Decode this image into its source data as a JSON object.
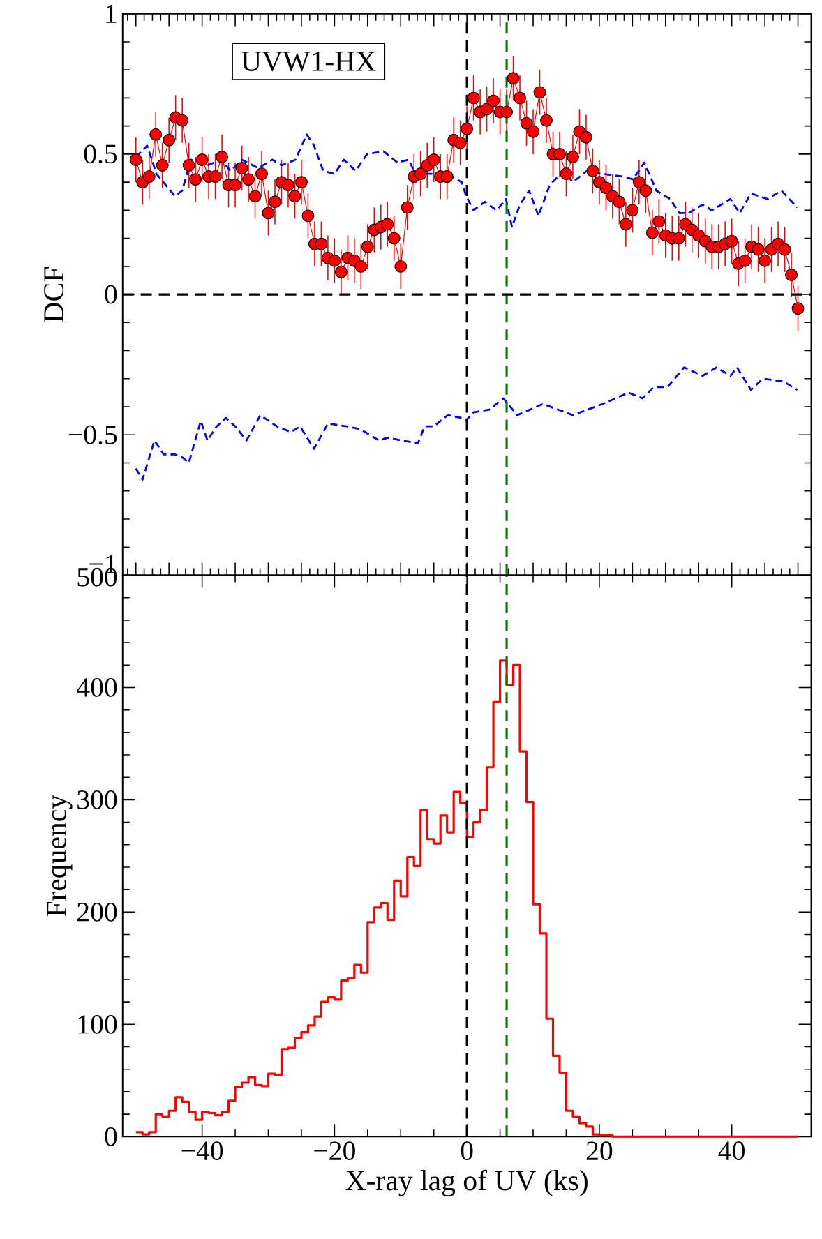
{
  "chart_data": [
    {
      "type": "line",
      "ylabel": "DCF",
      "annotations": [
        "UVW1-HX"
      ],
      "xlim": [
        -52,
        52
      ],
      "ylim": [
        -1,
        1
      ],
      "yticks": [
        {
          "value": -1,
          "label": "−1"
        },
        {
          "value": -0.5,
          "label": "−0.5"
        },
        0,
        0.5,
        1
      ],
      "tick_labels": "y",
      "series": [
        {
          "type": "line",
          "color": "#ff0000",
          "marker": "circle",
          "x": [
            -50,
            -49,
            -48,
            -47,
            -46,
            -45,
            -44,
            -43,
            -42,
            -41,
            -40,
            -39,
            -38,
            -37,
            -36,
            -35,
            -34,
            -33,
            -32,
            -31,
            -30,
            -29,
            -28,
            -27,
            -26,
            -25,
            -24,
            -23,
            -22,
            -21,
            -20,
            -19,
            -18,
            -17,
            -16,
            -15,
            -14,
            -13,
            -12,
            -11,
            -10,
            -9,
            -8,
            -7,
            -6,
            -5,
            -4,
            -3,
            -2,
            -1,
            0,
            1,
            2,
            3,
            4,
            5,
            6,
            7,
            8,
            9,
            10,
            11,
            12,
            13,
            14,
            15,
            16,
            17,
            18,
            19,
            20,
            21,
            22,
            23,
            24,
            25,
            26,
            27,
            28,
            29,
            30,
            31,
            32,
            33,
            34,
            35,
            36,
            37,
            38,
            39,
            40,
            41,
            42,
            43,
            44,
            45,
            46,
            47,
            48,
            49,
            50
          ],
          "values": [
            0.48,
            0.4,
            0.42,
            0.57,
            0.46,
            0.55,
            0.63,
            0.62,
            0.46,
            0.41,
            0.48,
            0.42,
            0.42,
            0.49,
            0.39,
            0.39,
            0.45,
            0.41,
            0.35,
            0.43,
            0.29,
            0.33,
            0.4,
            0.39,
            0.35,
            0.4,
            0.28,
            0.18,
            0.18,
            0.13,
            0.12,
            0.08,
            0.13,
            0.12,
            0.1,
            0.17,
            0.23,
            0.24,
            0.25,
            0.2,
            0.1,
            0.31,
            0.42,
            0.43,
            0.46,
            0.48,
            0.42,
            0.42,
            0.55,
            0.54,
            0.59,
            0.7,
            0.65,
            0.66,
            0.69,
            0.65,
            0.65,
            0.77,
            0.7,
            0.61,
            0.58,
            0.72,
            0.62,
            0.5,
            0.5,
            0.43,
            0.49,
            0.58,
            0.56,
            0.44,
            0.4,
            0.38,
            0.35,
            0.33,
            0.25,
            0.3,
            0.4,
            0.37,
            0.22,
            0.26,
            0.21,
            0.2,
            0.2,
            0.25,
            0.23,
            0.21,
            0.19,
            0.17,
            0.17,
            0.18,
            0.19,
            0.11,
            0.12,
            0.17,
            0.16,
            0.12,
            0.16,
            0.18,
            0.16,
            0.07,
            -0.05
          ],
          "errors": [
            0.08,
            0.08,
            0.08,
            0.08,
            0.08,
            0.08,
            0.08,
            0.08,
            0.08,
            0.08,
            0.08,
            0.08,
            0.08,
            0.08,
            0.08,
            0.08,
            0.08,
            0.08,
            0.08,
            0.08,
            0.08,
            0.08,
            0.08,
            0.08,
            0.08,
            0.08,
            0.08,
            0.08,
            0.08,
            0.08,
            0.08,
            0.08,
            0.08,
            0.08,
            0.08,
            0.08,
            0.08,
            0.08,
            0.08,
            0.08,
            0.08,
            0.08,
            0.08,
            0.08,
            0.08,
            0.08,
            0.08,
            0.08,
            0.08,
            0.08,
            0.08,
            0.08,
            0.08,
            0.08,
            0.08,
            0.08,
            0.08,
            0.08,
            0.08,
            0.08,
            0.08,
            0.08,
            0.08,
            0.08,
            0.08,
            0.08,
            0.08,
            0.08,
            0.08,
            0.08,
            0.08,
            0.08,
            0.08,
            0.08,
            0.08,
            0.08,
            0.08,
            0.08,
            0.08,
            0.08,
            0.08,
            0.08,
            0.08,
            0.08,
            0.08,
            0.08,
            0.08,
            0.08,
            0.08,
            0.08,
            0.08,
            0.08,
            0.08,
            0.08,
            0.08,
            0.08,
            0.08,
            0.08,
            0.08,
            0.08,
            0.08
          ]
        },
        {
          "type": "line",
          "color": "#0000ff",
          "line_style": "dashed",
          "x": [
            -50,
            -48.3,
            -46.9,
            -44.1,
            -43,
            -41.7,
            -39.2,
            -37.1,
            -35.7,
            -34,
            -31.5,
            -29.4,
            -28,
            -25.9,
            -24.2,
            -23.1,
            -21.7,
            -20,
            -18.6,
            -16.8,
            -15.1,
            -12.6,
            -10.5,
            -8.8,
            -7.8,
            -5,
            -2.2,
            -0.8,
            -0.1,
            1,
            2.7,
            4.5,
            5.9,
            6.8,
            8,
            9.4,
            10.8,
            12.5,
            14.6,
            16,
            18.1,
            20.2,
            23.7,
            25.1,
            26.8,
            28.6,
            30.7,
            32.1,
            33.5,
            35.6,
            37,
            39.8,
            41.2,
            42.9,
            45.4,
            47.5,
            49.9
          ],
          "values": [
            0.49,
            0.53,
            0.43,
            0.35,
            0.37,
            0.48,
            0.46,
            0.48,
            0.44,
            0.48,
            0.45,
            0.48,
            0.46,
            0.48,
            0.57,
            0.53,
            0.44,
            0.43,
            0.48,
            0.44,
            0.5,
            0.51,
            0.47,
            0.48,
            0.43,
            0.43,
            0.42,
            0.4,
            0.35,
            0.3,
            0.33,
            0.3,
            0.34,
            0.24,
            0.32,
            0.37,
            0.28,
            0.39,
            0.44,
            0.4,
            0.44,
            0.43,
            0.42,
            0.41,
            0.47,
            0.37,
            0.34,
            0.29,
            0.29,
            0.32,
            0.3,
            0.34,
            0.29,
            0.36,
            0.34,
            0.37,
            0.31
          ]
        },
        {
          "type": "line",
          "color": "#0000ff",
          "line_style": "dashed",
          "x": [
            -50,
            -49,
            -47.2,
            -45.8,
            -44.1,
            -43,
            -42,
            -40.2,
            -39.2,
            -37.8,
            -36.4,
            -35,
            -33.3,
            -31.2,
            -28.7,
            -26.6,
            -25.2,
            -23.1,
            -21,
            -18.2,
            -16.1,
            -13.3,
            -11.9,
            -9.9,
            -7.4,
            -6.4,
            -5,
            -2.9,
            -0.8,
            -0.2,
            1,
            3.4,
            5.5,
            7.6,
            11.5,
            16,
            20.5,
            24.4,
            26.5,
            28.2,
            30.3,
            32.8,
            35.6,
            37.7,
            39.8,
            40.8,
            42.9,
            44.7,
            47.8,
            49.9
          ],
          "values": [
            -0.62,
            -0.66,
            -0.52,
            -0.57,
            -0.57,
            -0.58,
            -0.6,
            -0.45,
            -0.52,
            -0.47,
            -0.44,
            -0.47,
            -0.52,
            -0.43,
            -0.47,
            -0.49,
            -0.47,
            -0.55,
            -0.46,
            -0.47,
            -0.48,
            -0.52,
            -0.51,
            -0.52,
            -0.53,
            -0.47,
            -0.47,
            -0.43,
            -0.44,
            -0.45,
            -0.42,
            -0.41,
            -0.37,
            -0.43,
            -0.39,
            -0.43,
            -0.39,
            -0.35,
            -0.37,
            -0.33,
            -0.33,
            -0.26,
            -0.29,
            -0.26,
            -0.29,
            -0.26,
            -0.34,
            -0.3,
            -0.31,
            -0.34
          ]
        }
      ],
      "ref_lines": [
        {
          "axis": "x",
          "value": 0,
          "color": "#000000",
          "line_style": "dashed"
        },
        {
          "axis": "x",
          "value": 6,
          "color": "#008000",
          "line_style": "dashed"
        },
        {
          "axis": "y",
          "value": 0,
          "color": "#000000",
          "line_style": "dashed"
        }
      ]
    },
    {
      "type": "histogram",
      "xlabel": "X-ray lag of UV (ks)",
      "ylabel": "Frequency",
      "color": "#ff0000",
      "xlim": [
        -52,
        52
      ],
      "ylim": [
        0,
        500
      ],
      "xticks": [
        {
          "value": -40,
          "label": "−40"
        },
        {
          "value": -20,
          "label": "−20"
        },
        0,
        20,
        40
      ],
      "yticks": [
        0,
        100,
        200,
        300,
        400,
        500
      ],
      "bins": [
        -50,
        -49,
        -48,
        -47,
        -46,
        -45,
        -44,
        -43,
        -42,
        -41,
        -40,
        -39,
        -38,
        -37,
        -36,
        -35,
        -34,
        -33,
        -32,
        -31,
        -30,
        -29,
        -28,
        -27,
        -26,
        -25,
        -24,
        -23,
        -22,
        -21,
        -20,
        -19,
        -18,
        -17,
        -16,
        -15,
        -14,
        -13,
        -12,
        -11,
        -10,
        -9,
        -8,
        -7,
        -6,
        -5,
        -4,
        -3,
        -2,
        -1,
        0,
        1,
        2,
        3,
        4,
        5,
        6,
        7,
        8,
        9,
        10,
        11,
        12,
        13,
        14,
        15,
        16,
        17,
        18,
        19,
        20,
        21,
        22,
        23,
        24,
        25,
        26,
        27,
        28,
        29,
        30,
        31,
        32,
        33,
        34,
        35,
        36,
        37,
        38,
        39,
        40,
        41,
        42,
        43,
        44,
        45,
        46,
        47,
        48,
        49,
        50
      ],
      "values": [
        4,
        2,
        4,
        20,
        18,
        23,
        35,
        31,
        22,
        15,
        22,
        21,
        19,
        22,
        32,
        44,
        48,
        53,
        46,
        45,
        56,
        55,
        78,
        79,
        88,
        93,
        99,
        107,
        120,
        124,
        122,
        139,
        141,
        153,
        146,
        191,
        204,
        208,
        193,
        228,
        214,
        249,
        241,
        291,
        265,
        261,
        286,
        271,
        307,
        297,
        267,
        280,
        291,
        329,
        387,
        424,
        402,
        420,
        343,
        298,
        207,
        181,
        105,
        72,
        57,
        23,
        18,
        12,
        9,
        2,
        1,
        1,
        0,
        0,
        0,
        0,
        0,
        0,
        0,
        0,
        0,
        0,
        0,
        0,
        0,
        0,
        0,
        0,
        0,
        0,
        0,
        0,
        0,
        0,
        0,
        0,
        0,
        0,
        0,
        0
      ],
      "ref_lines": [
        {
          "axis": "x",
          "value": 0,
          "color": "#000000",
          "line_style": "dashed"
        },
        {
          "axis": "x",
          "value": 6,
          "color": "#008000",
          "line_style": "dashed"
        }
      ]
    }
  ]
}
